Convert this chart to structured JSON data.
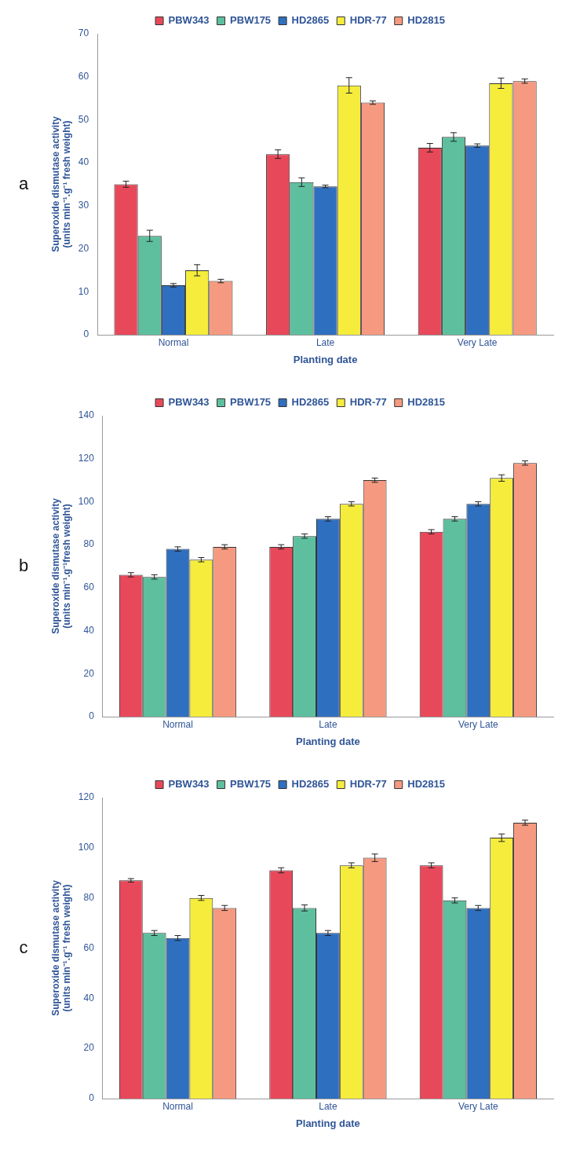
{
  "chart_data": [
    {
      "type": "bar",
      "categories": [
        "Normal",
        "Late",
        "Very Late"
      ],
      "xlabel": "Planting date",
      "ylabel": "Superoxide dismutase activity (units min⁻¹.g⁻¹ fresh weight)",
      "ylim": [
        0,
        70
      ],
      "yticks": [
        0,
        10,
        20,
        30,
        40,
        50,
        60,
        70
      ],
      "legend": "top",
      "annotations": [
        "a"
      ],
      "series": [
        {
          "name": "PBW343",
          "color": "#e8495a",
          "values": [
            35,
            42,
            43.5
          ],
          "errors": [
            0.7,
            1,
            1
          ]
        },
        {
          "name": "PBW175",
          "color": "#5dbf9e",
          "values": [
            23,
            35.5,
            46
          ],
          "errors": [
            1.3,
            1,
            1
          ]
        },
        {
          "name": "HD2865",
          "color": "#2f6fbf",
          "values": [
            11.5,
            34.5,
            44
          ],
          "errors": [
            0.4,
            0.3,
            0.4
          ]
        },
        {
          "name": "HDR-77",
          "color": "#f5ec3c",
          "values": [
            15,
            58,
            58.5
          ],
          "errors": [
            1.3,
            1.8,
            1.2
          ]
        },
        {
          "name": "HD2815",
          "color": "#f59a80",
          "values": [
            12.5,
            54,
            59
          ],
          "errors": [
            0.4,
            0.4,
            0.5
          ]
        }
      ]
    },
    {
      "type": "bar",
      "categories": [
        "Normal",
        "Late",
        "Very Late"
      ],
      "xlabel": "Planting date",
      "ylabel": "Superoxide dismutase activity (units min⁻¹.g⁻¹fresh weight)",
      "ylim": [
        0,
        140
      ],
      "yticks": [
        0,
        20,
        40,
        60,
        80,
        100,
        120,
        140
      ],
      "legend": "top",
      "annotations": [
        "b"
      ],
      "series": [
        {
          "name": "PBW343",
          "color": "#e8495a",
          "values": [
            66,
            79,
            86
          ],
          "errors": [
            1,
            1,
            1
          ]
        },
        {
          "name": "PBW175",
          "color": "#5dbf9e",
          "values": [
            65,
            84,
            92
          ],
          "errors": [
            1,
            1,
            1
          ]
        },
        {
          "name": "HD2865",
          "color": "#2f6fbf",
          "values": [
            78,
            92,
            99
          ],
          "errors": [
            1,
            1,
            1
          ]
        },
        {
          "name": "HDR-77",
          "color": "#f5ec3c",
          "values": [
            73,
            99,
            111
          ],
          "errors": [
            1,
            1,
            1.5
          ]
        },
        {
          "name": "HD2815",
          "color": "#f59a80",
          "values": [
            79,
            110,
            118
          ],
          "errors": [
            1,
            1,
            1
          ]
        }
      ]
    },
    {
      "type": "bar",
      "categories": [
        "Normal",
        "Late",
        "Very Late"
      ],
      "xlabel": "Planting date",
      "ylabel": "Superoxide dismutase activity (units min⁻¹.g⁻¹ fresh weight)",
      "ylim": [
        0,
        120
      ],
      "yticks": [
        0,
        20,
        40,
        60,
        80,
        100,
        120
      ],
      "legend": "top",
      "annotations": [
        "c"
      ],
      "series": [
        {
          "name": "PBW343",
          "color": "#e8495a",
          "values": [
            87,
            91,
            93
          ],
          "errors": [
            0.7,
            1,
            1
          ]
        },
        {
          "name": "PBW175",
          "color": "#5dbf9e",
          "values": [
            66,
            76,
            79
          ],
          "errors": [
            1,
            1.2,
            1
          ]
        },
        {
          "name": "HD2865",
          "color": "#2f6fbf",
          "values": [
            64,
            66,
            76
          ],
          "errors": [
            1,
            1,
            1
          ]
        },
        {
          "name": "HDR-77",
          "color": "#f5ec3c",
          "values": [
            80,
            93,
            104
          ],
          "errors": [
            1,
            1,
            1.5
          ]
        },
        {
          "name": "HD2815",
          "color": "#f59a80",
          "values": [
            76,
            96,
            110
          ],
          "errors": [
            1,
            1.5,
            1
          ]
        }
      ]
    }
  ]
}
